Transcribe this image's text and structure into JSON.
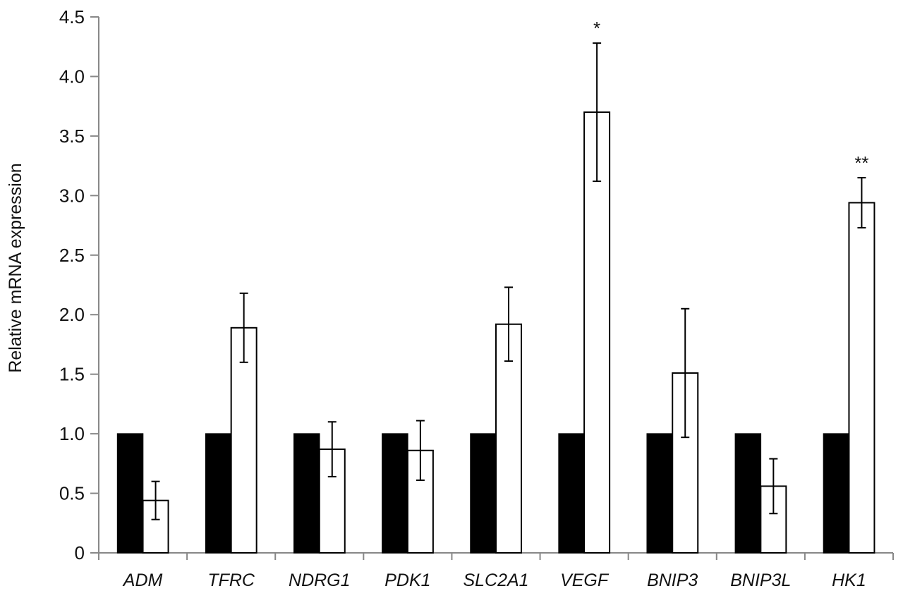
{
  "chart_data": {
    "type": "bar",
    "title": "",
    "xlabel": "",
    "ylabel": "Relative mRNA expression",
    "ylim": [
      0,
      4.5
    ],
    "yticks": [
      0,
      0.5,
      1.0,
      1.5,
      2.0,
      2.5,
      3.0,
      3.5,
      4.0,
      4.5
    ],
    "ytick_labels": [
      "0",
      "0.5",
      "1.0",
      "1.5",
      "2.0",
      "2.5",
      "3.0",
      "3.5",
      "4.0",
      "4.5"
    ],
    "grid": false,
    "legend": "none",
    "categories": [
      "ADM",
      "TFRC",
      "NDRG1",
      "PDK1",
      "SLC2A1",
      "VEGF",
      "BNIP3",
      "BNIP3L",
      "HK1"
    ],
    "series": [
      {
        "color": "#000000",
        "fill": "solid",
        "values": [
          1.0,
          1.0,
          1.0,
          1.0,
          1.0,
          1.0,
          1.0,
          1.0,
          1.0
        ]
      },
      {
        "color": "#ffffff",
        "fill": "open",
        "values": [
          0.44,
          1.89,
          0.87,
          0.86,
          1.92,
          3.7,
          1.51,
          0.56,
          2.94
        ],
        "error": [
          0.16,
          0.29,
          0.23,
          0.25,
          0.31,
          0.58,
          0.54,
          0.23,
          0.21
        ]
      }
    ],
    "annotations": [
      {
        "category": "VEGF",
        "text": "*"
      },
      {
        "category": "HK1",
        "text": "**"
      }
    ]
  }
}
